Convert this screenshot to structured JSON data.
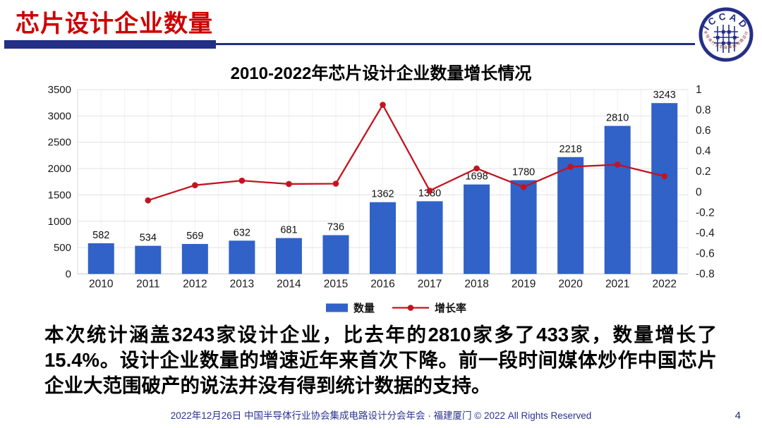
{
  "header": {
    "title": "芯片设计企业数量"
  },
  "logo": {
    "text": "ICCAD",
    "ring_text": "中国半导体行业协会集成电路设计分会"
  },
  "chart_data": {
    "type": "bar+line",
    "title": "2010-2022年芯片设计企业数量增长情况",
    "categories": [
      "2010",
      "2011",
      "2012",
      "2013",
      "2014",
      "2015",
      "2016",
      "2017",
      "2018",
      "2019",
      "2020",
      "2021",
      "2022"
    ],
    "series": [
      {
        "name": "数量",
        "type": "bar",
        "color": "#3062C8",
        "values": [
          582,
          534,
          569,
          632,
          681,
          736,
          1362,
          1380,
          1698,
          1780,
          2218,
          2810,
          3243
        ]
      },
      {
        "name": "增长率",
        "type": "line",
        "color": "#C21420",
        "values": [
          null,
          -0.082,
          0.066,
          0.111,
          0.078,
          0.081,
          0.851,
          0.013,
          0.23,
          0.048,
          0.246,
          0.267,
          0.154
        ]
      }
    ],
    "left_axis": {
      "min": 0,
      "max": 3500,
      "step": 500
    },
    "right_axis": {
      "min": -0.8,
      "max": 1,
      "step": 0.2
    },
    "grid": true,
    "legend_position": "bottom"
  },
  "body_text": "本次统计涵盖3243家设计企业，比去年的2810家多了433家，数量增长了15.4%。设计企业数量的增速近年来首次下降。前一段时间媒体炒作中国芯片企业大范围破产的说法并没有得到统计数据的支持。",
  "footer": {
    "text": "2022年12月26日 中国半导体行业协会集成电路设计分会年会 · 福建厦门 © 2022 All Rights Reserved",
    "page_number": "4"
  },
  "colors": {
    "accent_red": "#CC0000",
    "navy": "#232E85",
    "bar_blue": "#3062C8",
    "line_red": "#C21420"
  }
}
